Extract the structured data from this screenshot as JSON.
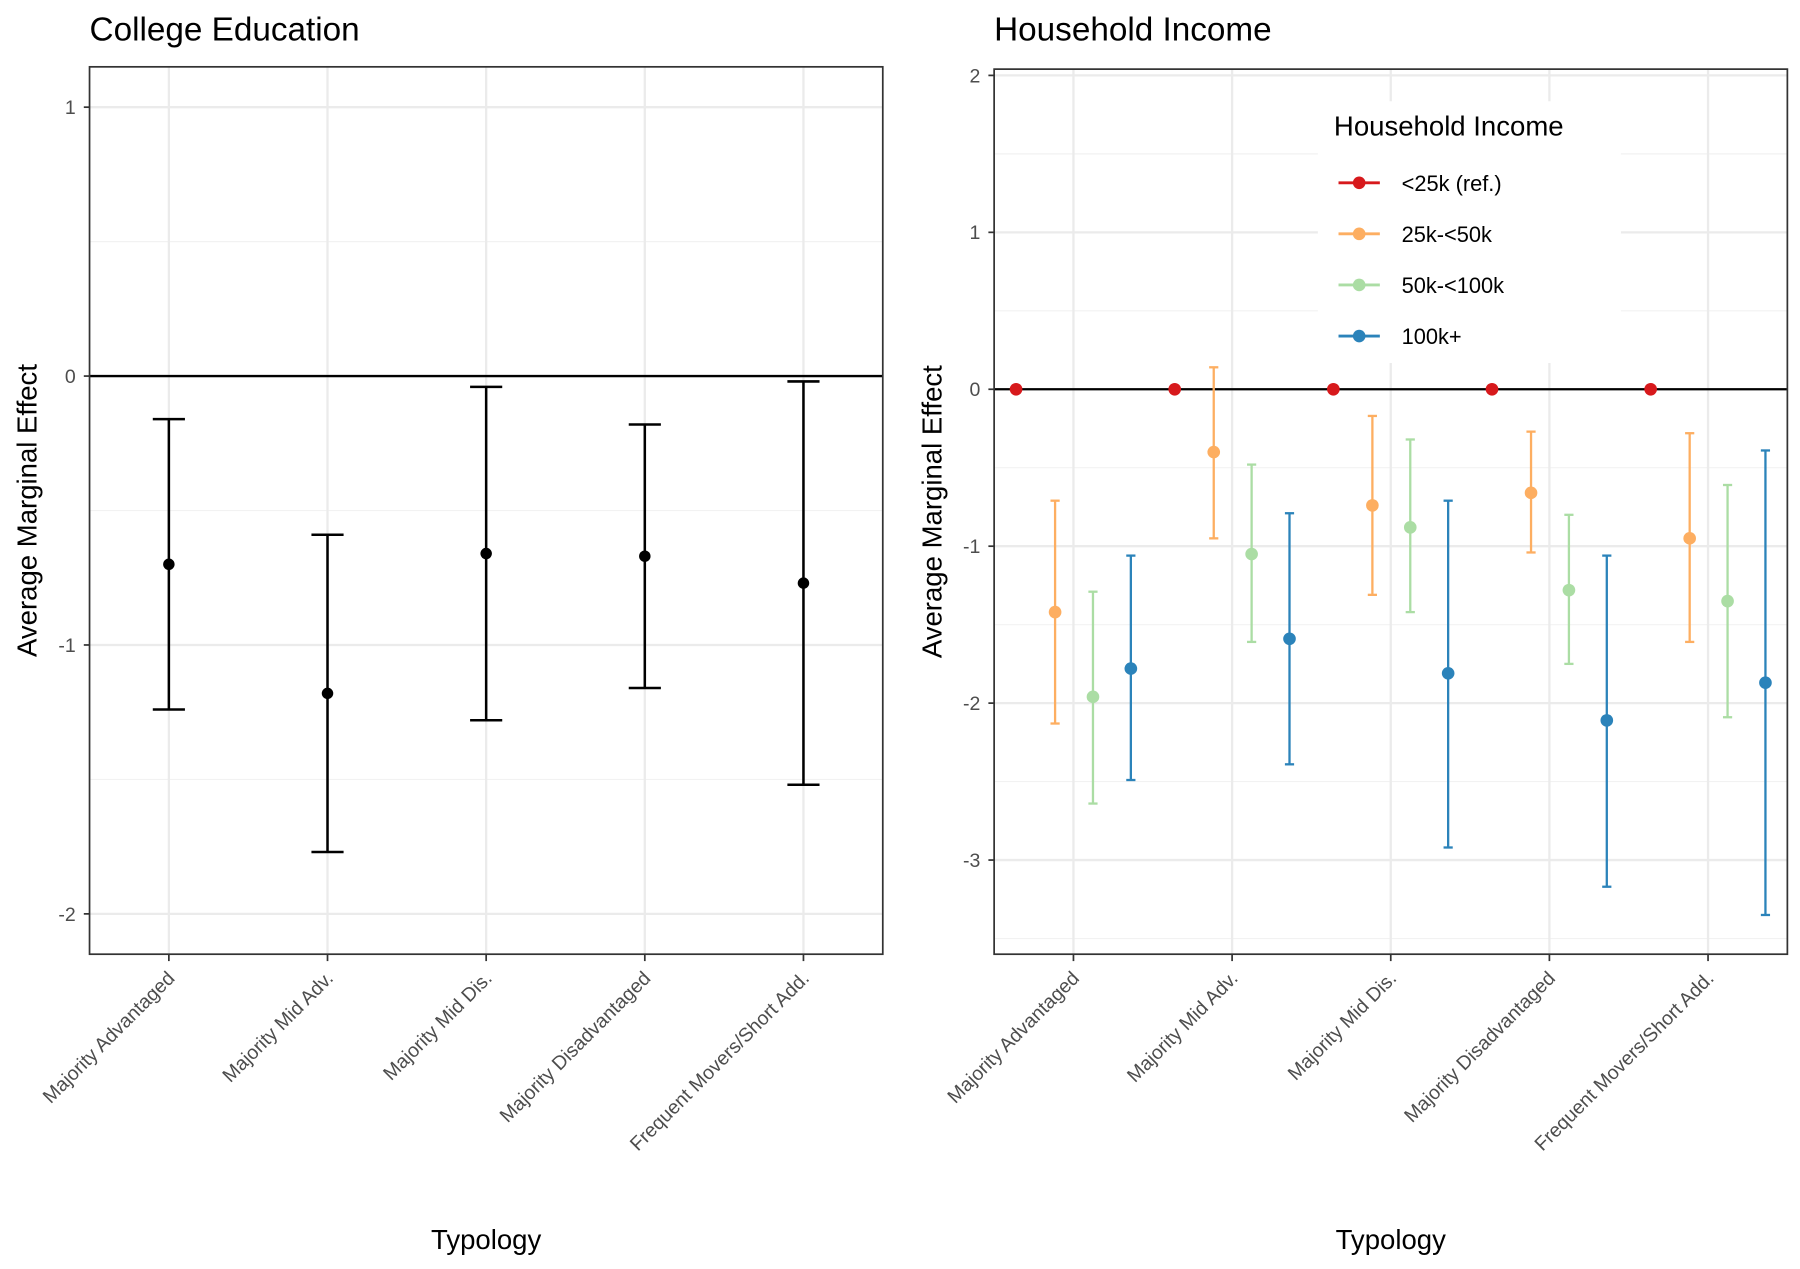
{
  "chart_data": [
    {
      "type": "scatter",
      "subtype": "point-errorbar",
      "title": "College Education",
      "xlabel": "Typology",
      "ylabel": "Average Marginal Effect",
      "ylim": [
        -2.15,
        1.15
      ],
      "yticks": [
        -2,
        -1,
        0,
        1
      ],
      "grid": true,
      "categories": [
        "Majority Advantaged",
        "Majority Mid Adv.",
        "Majority Mid Dis.",
        "Majority Disadvantaged",
        "Frequent Movers/Short Add."
      ],
      "series": [
        {
          "name": "College Education",
          "color": "#000000",
          "values": [
            -0.7,
            -1.18,
            -0.66,
            -0.67,
            -0.77
          ],
          "lower": [
            -1.24,
            -1.77,
            -1.28,
            -1.16,
            -1.52
          ],
          "upper": [
            -0.16,
            -0.59,
            -0.04,
            -0.18,
            -0.02
          ]
        }
      ]
    },
    {
      "type": "scatter",
      "subtype": "point-errorbar",
      "title": "Household Income",
      "xlabel": "Typology",
      "ylabel": "Average Marginal Effect",
      "ylim": [
        -3.6,
        2.04
      ],
      "yticks": [
        -3,
        -2,
        -1,
        0,
        1,
        2
      ],
      "grid": true,
      "legend": {
        "title": "Household Income",
        "position": "top-right"
      },
      "categories": [
        "Majority Advantaged",
        "Majority Mid Adv.",
        "Majority Mid Dis.",
        "Majority Disadvantaged",
        "Frequent Movers/Short Add."
      ],
      "series": [
        {
          "name": "<25k (ref.)",
          "color": "#d7191c",
          "values": [
            0,
            0,
            0,
            0,
            0
          ],
          "lower": [
            0,
            0,
            0,
            0,
            0
          ],
          "upper": [
            0,
            0,
            0,
            0,
            0
          ]
        },
        {
          "name": "25k-<50k",
          "color": "#fdae61",
          "values": [
            -1.42,
            -0.4,
            -0.74,
            -0.66,
            -0.95
          ],
          "lower": [
            -2.13,
            -0.95,
            -1.31,
            -1.04,
            -1.61
          ],
          "upper": [
            -0.71,
            0.14,
            -0.17,
            -0.27,
            -0.28
          ]
        },
        {
          "name": "50k-<100k",
          "color": "#abdda4",
          "values": [
            -1.96,
            -1.05,
            -0.88,
            -1.28,
            -1.35
          ],
          "lower": [
            -2.64,
            -1.61,
            -1.42,
            -1.75,
            -2.09
          ],
          "upper": [
            -1.29,
            -0.48,
            -0.32,
            -0.8,
            -0.61
          ]
        },
        {
          "name": "100k+",
          "color": "#2b83ba",
          "values": [
            -1.78,
            -1.59,
            -1.81,
            -2.11,
            -1.87
          ],
          "lower": [
            -2.49,
            -2.39,
            -2.92,
            -3.17,
            -3.35
          ],
          "upper": [
            -1.06,
            -0.79,
            -0.71,
            -1.06,
            -0.39
          ]
        }
      ]
    }
  ]
}
